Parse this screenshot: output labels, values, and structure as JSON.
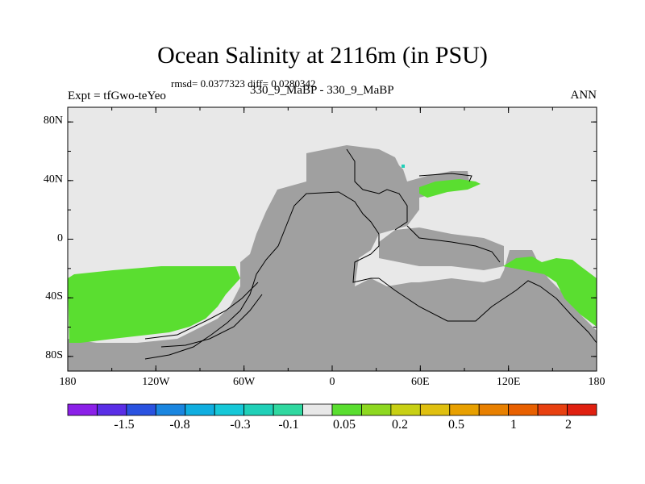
{
  "title": "Ocean Salinity at 2116m (in PSU)",
  "stats": "rmsd= 0.0377323 diff= 0.0280342",
  "experiment": "Expt = tfGwo-teYeo",
  "case_label": "330_9_MaBP - 330_9_MaBP",
  "season": "ANN",
  "chart_data": {
    "type": "heatmap",
    "projection": "cylindrical-equidistant",
    "xlim": [
      -180,
      180
    ],
    "ylim": [
      -90,
      90
    ],
    "xticks": [
      {
        "value": -180,
        "label": "180"
      },
      {
        "value": -120,
        "label": "120W"
      },
      {
        "value": -60,
        "label": "60W"
      },
      {
        "value": 0,
        "label": "0"
      },
      {
        "value": 60,
        "label": "60E"
      },
      {
        "value": 120,
        "label": "120E"
      },
      {
        "value": 180,
        "label": "180"
      }
    ],
    "yticks": [
      {
        "value": 80,
        "label": "80N"
      },
      {
        "value": 40,
        "label": "40N"
      },
      {
        "value": 0,
        "label": "0"
      },
      {
        "value": -40,
        "label": "40S"
      },
      {
        "value": -80,
        "label": "80S"
      }
    ],
    "colorbar_labels": [
      "-1.5",
      "-0.8",
      "-0.3",
      "-0.1",
      "0.05",
      "0.2",
      "0.5",
      "1",
      "2"
    ],
    "colorbar_colors": [
      "#8b20e8",
      "#5a2ee6",
      "#2a52e0",
      "#1a86e0",
      "#10aee0",
      "#16c8d8",
      "#20d0b8",
      "#30d8a0",
      "#e8e8e8",
      "#5ade30",
      "#8ed820",
      "#c8d014",
      "#e0c010",
      "#e8a000",
      "#e88000",
      "#e86000",
      "#e84010",
      "#e02010"
    ],
    "ocean_color": "#e8e8e8",
    "land_color": "#a0a0a0",
    "anomaly_color": "#5ade30",
    "anomaly_cyan": "#20d0b8"
  }
}
